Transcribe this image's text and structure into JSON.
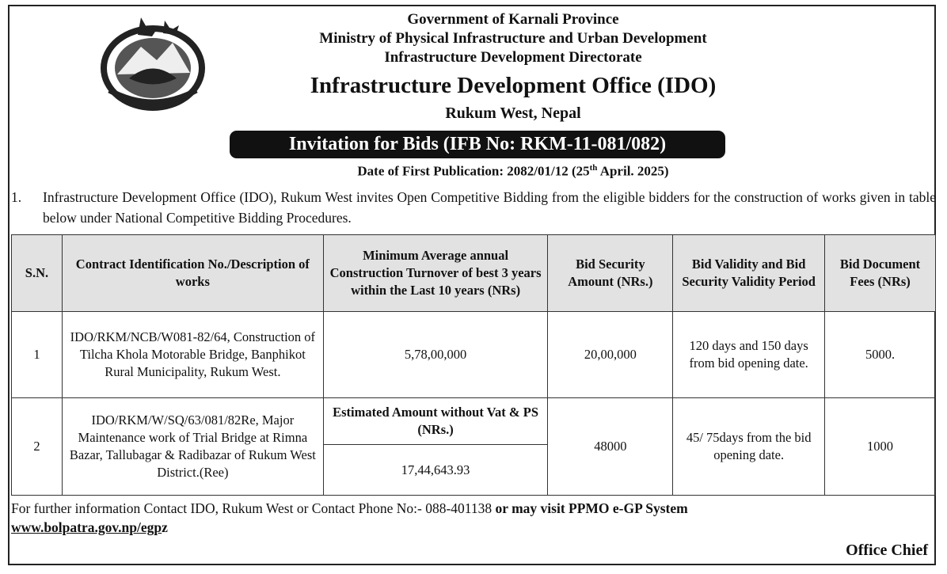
{
  "header": {
    "line1": "Government of Karnali Province",
    "line2": "Ministry of Physical Infrastructure and Urban Development",
    "line3": "Infrastructure Development Directorate",
    "office": "Infrastructure Development Office (IDO)",
    "location": "Rukum West, Nepal"
  },
  "ifb_banner": "Invitation for Bids (IFB No: RKM-11-081/082)",
  "publication": {
    "prefix": "Date of First Publication: 2082/01/12 (25",
    "sup": "th",
    "suffix": " April. 2025)"
  },
  "intro": {
    "number": "1.",
    "text": "Infrastructure Development Office (IDO), Rukum West invites Open Competitive Bidding from the eligible bidders for the construction of works given in table below under National Competitive Bidding Procedures."
  },
  "table": {
    "headers": {
      "sn": "S.N.",
      "contract": "Contract Identification No./Description of works",
      "turnover": "Minimum Average annual Construction Turnover of best 3 years within the Last 10 years (NRs)",
      "bid_security": "Bid Security Amount (NRs.)",
      "validity": "Bid Validity and Bid Security Validity Period",
      "fees": "Bid Document Fees (NRs)"
    },
    "rows": [
      {
        "sn": "1",
        "contract": "IDO/RKM/NCB/W081-82/64, Construction of Tilcha Khola Motorable Bridge, Banphikot Rural Municipality, Rukum West.",
        "turnover": "5,78,00,000",
        "bid_security": "20,00,000",
        "validity": "120 days and 150 days from bid opening date.",
        "fees": "5000."
      },
      {
        "sn": "2",
        "contract": "IDO/RKM/W/SQ/63/081/82Re, Major Maintenance work of Trial Bridge at Rimna Bazar, Tallubagar & Radibazar of Rukum West District.(Ree)",
        "estimate_label": "Estimated Amount without Vat & PS (NRs.)",
        "estimate_value": "17,44,643.93",
        "bid_security": "48000",
        "validity": "45/ 75days from the bid opening date.",
        "fees": "1000"
      }
    ]
  },
  "footer": {
    "text_normal": "For further information Contact IDO, Rukum West or Contact Phone No:- 088-401138 ",
    "text_bold": "or may visit PPMO e-GP System",
    "url": "www.bolpatra.gov.np/egp",
    "url_tail": "z"
  },
  "signer": "Office Chief"
}
